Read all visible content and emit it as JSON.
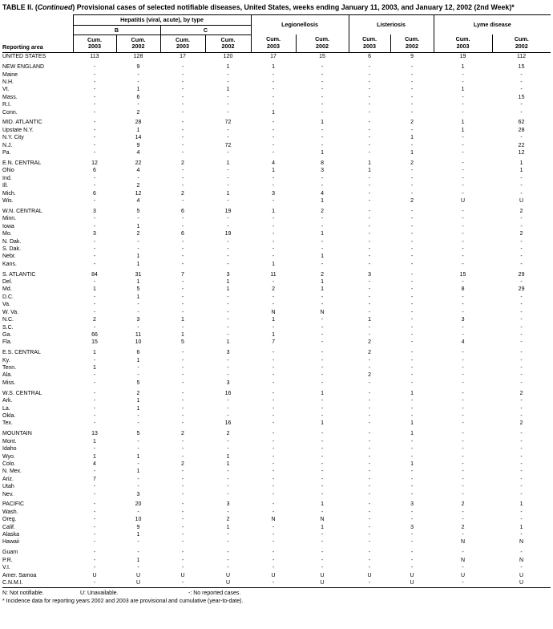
{
  "title": {
    "part1": "TABLE II. (",
    "continued": "Continued",
    "part2": ") Provisional cases of selected notifiable diseases, United States, weeks ending January 11, 2003, and January 12, 2002 (2nd Week)*"
  },
  "header": {
    "reporting_area": "Reporting area",
    "hepatitis_group": "Hepatitis (viral, acute), by type",
    "hep_b": "B",
    "hep_c": "C",
    "legionellosis": "Legionellosis",
    "listeriosis": "Listeriosis",
    "lyme_disease": "Lyme disease",
    "cum_label": "Cum.",
    "year_2003": "2003",
    "year_2002": "2002"
  },
  "rows": [
    {
      "area": "UNITED STATES",
      "gap": false,
      "values": [
        "113",
        "128",
        "17",
        "120",
        "17",
        "15",
        "6",
        "9",
        "19",
        "112"
      ]
    },
    {
      "area": "NEW ENGLAND",
      "gap": true,
      "values": [
        "-",
        "9",
        "-",
        "1",
        "1",
        "-",
        "-",
        "-",
        "1",
        "15"
      ]
    },
    {
      "area": "Maine",
      "gap": false,
      "values": [
        "-",
        "-",
        "-",
        "-",
        "-",
        "-",
        "-",
        "-",
        "-",
        "-"
      ]
    },
    {
      "area": "N.H.",
      "gap": false,
      "values": [
        "-",
        "-",
        "-",
        "-",
        "-",
        "-",
        "-",
        "-",
        "-",
        "-"
      ]
    },
    {
      "area": "Vt.",
      "gap": false,
      "values": [
        "-",
        "1",
        "-",
        "1",
        "-",
        "-",
        "-",
        "-",
        "1",
        "-"
      ]
    },
    {
      "area": "Mass.",
      "gap": false,
      "values": [
        "-",
        "6",
        "-",
        "-",
        "-",
        "-",
        "-",
        "-",
        "-",
        "15"
      ]
    },
    {
      "area": "R.I.",
      "gap": false,
      "values": [
        "-",
        "-",
        "-",
        "-",
        "-",
        "-",
        "-",
        "-",
        "-",
        "-"
      ]
    },
    {
      "area": "Conn.",
      "gap": false,
      "values": [
        "-",
        "2",
        "-",
        "-",
        "1",
        "-",
        "-",
        "-",
        "-",
        "-"
      ]
    },
    {
      "area": "MID. ATLANTIC",
      "gap": true,
      "values": [
        "-",
        "28",
        "-",
        "72",
        "-",
        "1",
        "-",
        "2",
        "1",
        "62"
      ]
    },
    {
      "area": "Upstate N.Y.",
      "gap": false,
      "values": [
        "-",
        "1",
        "-",
        "-",
        "-",
        "-",
        "-",
        "-",
        "1",
        "28"
      ]
    },
    {
      "area": "N.Y. City",
      "gap": false,
      "values": [
        "-",
        "14",
        "-",
        "-",
        "-",
        "-",
        "-",
        "1",
        "-",
        "-"
      ]
    },
    {
      "area": "N.J.",
      "gap": false,
      "values": [
        "-",
        "9",
        "-",
        "72",
        "-",
        "-",
        "-",
        "-",
        "-",
        "22"
      ]
    },
    {
      "area": "Pa.",
      "gap": false,
      "values": [
        "-",
        "4",
        "-",
        "-",
        "-",
        "1",
        "-",
        "1",
        "-",
        "12"
      ]
    },
    {
      "area": "E.N. CENTRAL",
      "gap": true,
      "values": [
        "12",
        "22",
        "2",
        "1",
        "4",
        "8",
        "1",
        "2",
        "-",
        "1"
      ]
    },
    {
      "area": "Ohio",
      "gap": false,
      "values": [
        "6",
        "4",
        "-",
        "-",
        "1",
        "3",
        "1",
        "-",
        "-",
        "1"
      ]
    },
    {
      "area": "Ind.",
      "gap": false,
      "values": [
        "-",
        "-",
        "-",
        "-",
        "-",
        "-",
        "-",
        "-",
        "-",
        "-"
      ]
    },
    {
      "area": "Ill.",
      "gap": false,
      "values": [
        "-",
        "2",
        "-",
        "-",
        "-",
        "-",
        "-",
        "-",
        "-",
        "-"
      ]
    },
    {
      "area": "Mich.",
      "gap": false,
      "values": [
        "6",
        "12",
        "2",
        "1",
        "3",
        "4",
        "-",
        "-",
        "-",
        "-"
      ]
    },
    {
      "area": "Wis.",
      "gap": false,
      "values": [
        "-",
        "4",
        "-",
        "-",
        "-",
        "1",
        "-",
        "2",
        "U",
        "U"
      ]
    },
    {
      "area": "W.N. CENTRAL",
      "gap": true,
      "values": [
        "3",
        "5",
        "6",
        "19",
        "1",
        "2",
        "-",
        "-",
        "-",
        "2"
      ]
    },
    {
      "area": "Minn.",
      "gap": false,
      "values": [
        "-",
        "-",
        "-",
        "-",
        "-",
        "-",
        "-",
        "-",
        "-",
        "-"
      ]
    },
    {
      "area": "Iowa",
      "gap": false,
      "values": [
        "-",
        "1",
        "-",
        "-",
        "-",
        "-",
        "-",
        "-",
        "-",
        "-"
      ]
    },
    {
      "area": "Mo.",
      "gap": false,
      "values": [
        "3",
        "2",
        "6",
        "19",
        "-",
        "1",
        "-",
        "-",
        "-",
        "2"
      ]
    },
    {
      "area": "N. Dak.",
      "gap": false,
      "values": [
        "-",
        "-",
        "-",
        "-",
        "-",
        "-",
        "-",
        "-",
        "-",
        "-"
      ]
    },
    {
      "area": "S. Dak.",
      "gap": false,
      "values": [
        "-",
        "-",
        "-",
        "-",
        "-",
        "-",
        "-",
        "-",
        "-",
        "-"
      ]
    },
    {
      "area": "Nebr.",
      "gap": false,
      "values": [
        "-",
        "1",
        "-",
        "-",
        "-",
        "1",
        "-",
        "-",
        "-",
        "-"
      ]
    },
    {
      "area": "Kans.",
      "gap": false,
      "values": [
        "-",
        "1",
        "-",
        "-",
        "1",
        "-",
        "-",
        "-",
        "-",
        "-"
      ]
    },
    {
      "area": "S. ATLANTIC",
      "gap": true,
      "values": [
        "84",
        "31",
        "7",
        "3",
        "11",
        "2",
        "3",
        "-",
        "15",
        "29"
      ]
    },
    {
      "area": "Del.",
      "gap": false,
      "values": [
        "-",
        "1",
        "-",
        "1",
        "-",
        "1",
        "-",
        "-",
        "-",
        "-"
      ]
    },
    {
      "area": "Md.",
      "gap": false,
      "values": [
        "1",
        "5",
        "-",
        "1",
        "2",
        "1",
        "-",
        "-",
        "8",
        "29"
      ]
    },
    {
      "area": "D.C.",
      "gap": false,
      "values": [
        "-",
        "1",
        "-",
        "-",
        "-",
        "-",
        "-",
        "-",
        "-",
        "-"
      ]
    },
    {
      "area": "Va.",
      "gap": false,
      "values": [
        "-",
        "-",
        "-",
        "-",
        "-",
        "-",
        "-",
        "-",
        "-",
        "-"
      ]
    },
    {
      "area": "W. Va.",
      "gap": false,
      "values": [
        "-",
        "-",
        "-",
        "-",
        "N",
        "N",
        "-",
        "-",
        "-",
        "-"
      ]
    },
    {
      "area": "N.C.",
      "gap": false,
      "values": [
        "2",
        "3",
        "1",
        "-",
        "1",
        "-",
        "1",
        "-",
        "3",
        "-"
      ]
    },
    {
      "area": "S.C.",
      "gap": false,
      "values": [
        "-",
        "-",
        "-",
        "-",
        "-",
        "-",
        "-",
        "-",
        "-",
        "-"
      ]
    },
    {
      "area": "Ga.",
      "gap": false,
      "values": [
        "66",
        "11",
        "1",
        "-",
        "1",
        "-",
        "-",
        "-",
        "-",
        "-"
      ]
    },
    {
      "area": "Fla.",
      "gap": false,
      "values": [
        "15",
        "10",
        "5",
        "1",
        "7",
        "-",
        "2",
        "-",
        "4",
        "-"
      ]
    },
    {
      "area": "E.S. CENTRAL",
      "gap": true,
      "values": [
        "1",
        "6",
        "-",
        "3",
        "-",
        "-",
        "2",
        "-",
        "-",
        "-"
      ]
    },
    {
      "area": "Ky.",
      "gap": false,
      "values": [
        "-",
        "1",
        "-",
        "-",
        "-",
        "-",
        "-",
        "-",
        "-",
        "-"
      ]
    },
    {
      "area": "Tenn.",
      "gap": false,
      "values": [
        "1",
        "-",
        "-",
        "-",
        "-",
        "-",
        "-",
        "-",
        "-",
        "-"
      ]
    },
    {
      "area": "Ala.",
      "gap": false,
      "values": [
        "-",
        "-",
        "-",
        "-",
        "-",
        "-",
        "2",
        "-",
        "-",
        "-"
      ]
    },
    {
      "area": "Miss.",
      "gap": false,
      "values": [
        "-",
        "5",
        "-",
        "3",
        "-",
        "-",
        "-",
        "-",
        "-",
        "-"
      ]
    },
    {
      "area": "W.S. CENTRAL",
      "gap": true,
      "values": [
        "-",
        "2",
        "-",
        "16",
        "-",
        "1",
        "-",
        "1",
        "-",
        "2"
      ]
    },
    {
      "area": "Ark.",
      "gap": false,
      "values": [
        "-",
        "1",
        "-",
        "-",
        "-",
        "-",
        "-",
        "-",
        "-",
        "-"
      ]
    },
    {
      "area": "La.",
      "gap": false,
      "values": [
        "-",
        "1",
        "-",
        "-",
        "-",
        "-",
        "-",
        "-",
        "-",
        "-"
      ]
    },
    {
      "area": "Okla.",
      "gap": false,
      "values": [
        "-",
        "-",
        "-",
        "-",
        "-",
        "-",
        "-",
        "-",
        "-",
        "-"
      ]
    },
    {
      "area": "Tex.",
      "gap": false,
      "values": [
        "-",
        "-",
        "-",
        "16",
        "-",
        "1",
        "-",
        "1",
        "-",
        "2"
      ]
    },
    {
      "area": "MOUNTAIN",
      "gap": true,
      "values": [
        "13",
        "5",
        "2",
        "2",
        "-",
        "-",
        "-",
        "1",
        "-",
        "-"
      ]
    },
    {
      "area": "Mont.",
      "gap": false,
      "values": [
        "1",
        "-",
        "-",
        "-",
        "-",
        "-",
        "-",
        "-",
        "-",
        "-"
      ]
    },
    {
      "area": "Idaho",
      "gap": false,
      "values": [
        "-",
        "-",
        "-",
        "-",
        "-",
        "-",
        "-",
        "-",
        "-",
        "-"
      ]
    },
    {
      "area": "Wyo.",
      "gap": false,
      "values": [
        "1",
        "1",
        "-",
        "1",
        "-",
        "-",
        "-",
        "-",
        "-",
        "-"
      ]
    },
    {
      "area": "Colo.",
      "gap": false,
      "values": [
        "4",
        "-",
        "2",
        "1",
        "-",
        "-",
        "-",
        "1",
        "-",
        "-"
      ]
    },
    {
      "area": "N. Mex.",
      "gap": false,
      "values": [
        "-",
        "1",
        "-",
        "-",
        "-",
        "-",
        "-",
        "-",
        "-",
        "-"
      ]
    },
    {
      "area": "Ariz.",
      "gap": false,
      "values": [
        "7",
        "-",
        "-",
        "-",
        "-",
        "-",
        "-",
        "-",
        "-",
        "-"
      ]
    },
    {
      "area": "Utah",
      "gap": false,
      "values": [
        "-",
        "-",
        "-",
        "-",
        "-",
        "-",
        "-",
        "-",
        "-",
        "-"
      ]
    },
    {
      "area": "Nev.",
      "gap": false,
      "values": [
        "-",
        "3",
        "-",
        "-",
        "-",
        "-",
        "-",
        "-",
        "-",
        "-"
      ]
    },
    {
      "area": "PACIFIC",
      "gap": true,
      "values": [
        "-",
        "20",
        "-",
        "3",
        "-",
        "1",
        "-",
        "3",
        "2",
        "1"
      ]
    },
    {
      "area": "Wash.",
      "gap": false,
      "values": [
        "-",
        "-",
        "-",
        "-",
        "-",
        "-",
        "-",
        "-",
        "-",
        "-"
      ]
    },
    {
      "area": "Oreg.",
      "gap": false,
      "values": [
        "-",
        "10",
        "-",
        "2",
        "N",
        "N",
        "-",
        "-",
        "-",
        "-"
      ]
    },
    {
      "area": "Calif.",
      "gap": false,
      "values": [
        "-",
        "9",
        "-",
        "1",
        "-",
        "1",
        "-",
        "3",
        "2",
        "1"
      ]
    },
    {
      "area": "Alaska",
      "gap": false,
      "values": [
        "-",
        "1",
        "-",
        "-",
        "-",
        "-",
        "-",
        "-",
        "-",
        "-"
      ]
    },
    {
      "area": "Hawaii",
      "gap": false,
      "values": [
        "-",
        "-",
        "-",
        "-",
        "-",
        "-",
        "-",
        "-",
        "N",
        "N"
      ]
    },
    {
      "area": "Guam",
      "gap": true,
      "values": [
        "-",
        "-",
        "-",
        "-",
        "-",
        "-",
        "-",
        "-",
        "-",
        "-"
      ]
    },
    {
      "area": "P.R.",
      "gap": false,
      "values": [
        "-",
        "1",
        "-",
        "-",
        "-",
        "-",
        "-",
        "-",
        "N",
        "N"
      ]
    },
    {
      "area": "V.I.",
      "gap": false,
      "values": [
        "-",
        "-",
        "-",
        "-",
        "-",
        "-",
        "-",
        "-",
        "-",
        "-"
      ]
    },
    {
      "area": "Amer. Samoa",
      "gap": false,
      "values": [
        "U",
        "U",
        "U",
        "U",
        "U",
        "U",
        "U",
        "U",
        "U",
        "U"
      ]
    },
    {
      "area": "C.N.M.I.",
      "gap": false,
      "values": [
        "-",
        "U",
        "-",
        "U",
        "-",
        "U",
        "-",
        "U",
        "-",
        "U"
      ]
    }
  ],
  "footnotes": {
    "not_notifiable": "N: Not notifiable.",
    "unavailable": "U: Unavailable.",
    "no_cases": "-: No reported cases.",
    "incidence": "* Incidence data for reporting years 2002 and 2003 are provisional and cumulative (year-to-date)."
  }
}
